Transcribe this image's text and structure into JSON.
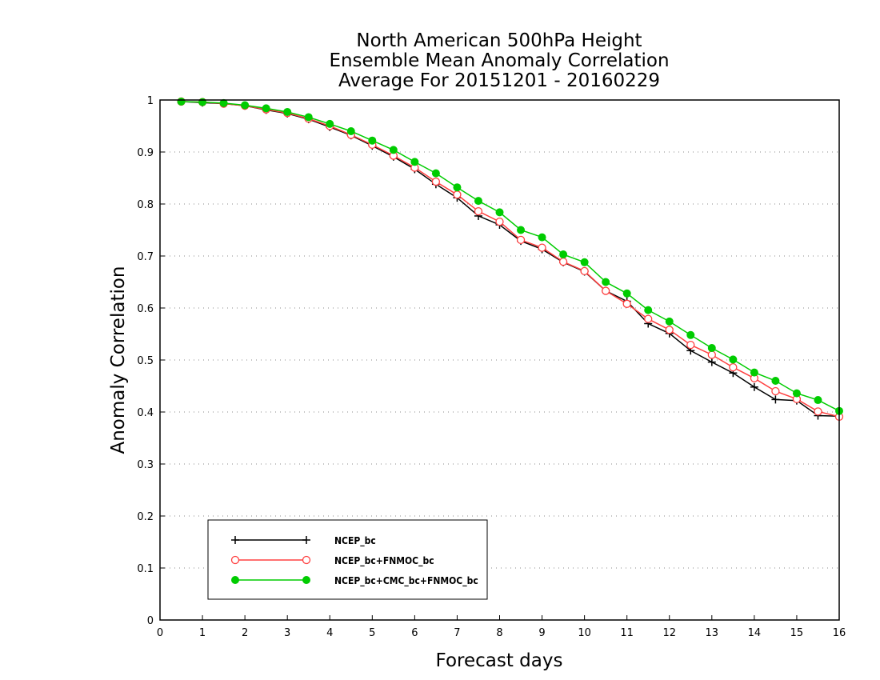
{
  "chart_data": {
    "type": "line",
    "title": [
      "North American 500hPa Height",
      "Ensemble Mean Anomaly Correlation",
      "Average For 20151201 - 20160229"
    ],
    "xlabel": "Forecast days",
    "ylabel": "Anomaly Correlation",
    "xlim": [
      0,
      16
    ],
    "ylim": [
      0,
      1
    ],
    "xticks": [
      "0",
      "1",
      "2",
      "3",
      "4",
      "5",
      "6",
      "7",
      "8",
      "9",
      "10",
      "11",
      "12",
      "13",
      "14",
      "15",
      "16"
    ],
    "yticks": [
      "0",
      "0.1",
      "0.2",
      "0.3",
      "0.4",
      "0.5",
      "0.6",
      "0.7",
      "0.8",
      "0.9",
      "1"
    ],
    "grid": "horizontal-dotted",
    "legend_position": "bottom-left",
    "x": [
      0.5,
      1,
      1.5,
      2,
      2.5,
      3,
      3.5,
      4,
      4.5,
      5,
      5.5,
      6,
      6.5,
      7,
      7.5,
      8,
      8.5,
      9,
      9.5,
      10,
      10.5,
      11,
      11.5,
      12,
      12.5,
      13,
      13.5,
      14,
      14.5,
      15,
      15.5,
      16
    ],
    "series": [
      {
        "name": "NCEP_bc",
        "color": "#000000",
        "marker": "plus",
        "values": [
          0.997,
          0.995,
          0.993,
          0.989,
          0.981,
          0.974,
          0.963,
          0.948,
          0.932,
          0.912,
          0.891,
          0.867,
          0.838,
          0.812,
          0.777,
          0.76,
          0.729,
          0.713,
          0.688,
          0.67,
          0.633,
          0.613,
          0.57,
          0.551,
          0.518,
          0.496,
          0.475,
          0.448,
          0.424,
          0.422,
          0.393,
          0.392
        ]
      },
      {
        "name": "NCEP_bc+FNMOC_bc",
        "color": "#ff4040",
        "marker": "open-circle",
        "values": [
          0.997,
          0.996,
          0.993,
          0.989,
          0.982,
          0.975,
          0.964,
          0.95,
          0.933,
          0.914,
          0.893,
          0.87,
          0.843,
          0.818,
          0.786,
          0.766,
          0.731,
          0.716,
          0.689,
          0.671,
          0.633,
          0.608,
          0.579,
          0.558,
          0.529,
          0.51,
          0.486,
          0.465,
          0.44,
          0.425,
          0.401,
          0.391
        ]
      },
      {
        "name": "NCEP_bc+CMC_bc+FNMOC_bc",
        "color": "#00cc00",
        "marker": "filled-circle",
        "values": [
          0.997,
          0.996,
          0.994,
          0.99,
          0.984,
          0.977,
          0.967,
          0.954,
          0.94,
          0.922,
          0.904,
          0.881,
          0.859,
          0.832,
          0.806,
          0.784,
          0.75,
          0.736,
          0.703,
          0.688,
          0.65,
          0.628,
          0.596,
          0.574,
          0.548,
          0.523,
          0.501,
          0.476,
          0.46,
          0.436,
          0.423,
          0.402
        ]
      }
    ]
  }
}
